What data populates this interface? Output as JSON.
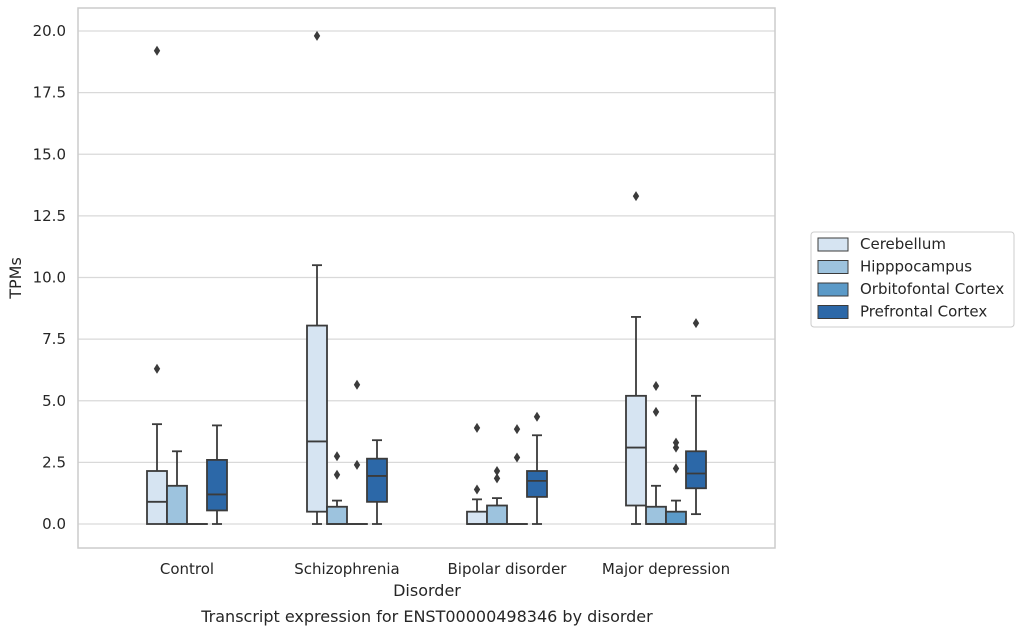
{
  "caption": "Transcript expression for ENST00000498346 by disorder",
  "chart_data": {
    "type": "box",
    "xlabel": "Disorder",
    "ylabel": "TPMs",
    "ylim": [
      -1.0,
      20.9
    ],
    "yticks": [
      "0.0",
      "2.5",
      "5.0",
      "7.5",
      "10.0",
      "12.5",
      "15.0",
      "17.5",
      "20.0"
    ],
    "ytick_values": [
      0,
      2.5,
      5,
      7.5,
      10,
      12.5,
      15,
      17.5,
      20
    ],
    "grid": "horizontal",
    "legend_position": "right",
    "categories": [
      "Control",
      "Schizophrenia",
      "Bipolar disorder",
      "Major depression"
    ],
    "series": [
      {
        "name": "Cerebellum",
        "color": "#d6e4f2",
        "boxes": [
          {
            "min": 0,
            "q1": 0,
            "median": 0.9,
            "q3": 2.15,
            "max": 4.05,
            "outliers": [
              6.3,
              19.2
            ]
          },
          {
            "min": 0,
            "q1": 0.5,
            "median": 3.35,
            "q3": 8.05,
            "max": 10.5,
            "outliers": [
              19.8
            ]
          },
          {
            "min": 0,
            "q1": 0,
            "median": 0,
            "q3": 0.5,
            "max": 1.0,
            "outliers": [
              1.4,
              3.9
            ]
          },
          {
            "min": 0,
            "q1": 0.75,
            "median": 3.1,
            "q3": 5.2,
            "max": 8.4,
            "outliers": [
              13.3
            ]
          }
        ]
      },
      {
        "name": "Hipppocampus",
        "color": "#9dc3de",
        "boxes": [
          {
            "min": 0,
            "q1": 0,
            "median": 0,
            "q3": 1.55,
            "max": 2.95,
            "outliers": []
          },
          {
            "min": 0,
            "q1": 0,
            "median": 0,
            "q3": 0.7,
            "max": 0.95,
            "outliers": [
              2.0,
              2.75
            ]
          },
          {
            "min": 0,
            "q1": 0,
            "median": 0,
            "q3": 0.75,
            "max": 1.05,
            "outliers": [
              1.85,
              2.15
            ]
          },
          {
            "min": 0,
            "q1": 0,
            "median": 0,
            "q3": 0.7,
            "max": 1.55,
            "outliers": [
              4.55,
              5.6
            ]
          }
        ]
      },
      {
        "name": "Orbitofontal Cortex",
        "color": "#5b9ac8",
        "boxes": [
          {
            "min": 0,
            "q1": 0,
            "median": 0,
            "q3": 0,
            "max": 0,
            "outliers": []
          },
          {
            "min": 0,
            "q1": 0,
            "median": 0,
            "q3": 0,
            "max": 0,
            "outliers": [
              2.4,
              5.65
            ]
          },
          {
            "min": 0,
            "q1": 0,
            "median": 0,
            "q3": 0,
            "max": 0,
            "outliers": [
              2.7,
              3.85
            ]
          },
          {
            "min": 0,
            "q1": 0,
            "median": 0,
            "q3": 0.5,
            "max": 0.95,
            "outliers": [
              2.25,
              3.1,
              3.3
            ]
          }
        ]
      },
      {
        "name": "Prefrontal Cortex",
        "color": "#2c68a8",
        "boxes": [
          {
            "min": 0,
            "q1": 0.55,
            "median": 1.2,
            "q3": 2.6,
            "max": 4.0,
            "outliers": []
          },
          {
            "min": 0,
            "q1": 0.9,
            "median": 1.95,
            "q3": 2.65,
            "max": 3.4,
            "outliers": []
          },
          {
            "min": 0,
            "q1": 1.1,
            "median": 1.75,
            "q3": 2.15,
            "max": 3.6,
            "outliers": [
              4.35
            ]
          },
          {
            "min": 0.4,
            "q1": 1.45,
            "median": 2.05,
            "q3": 2.95,
            "max": 5.2,
            "outliers": [
              8.15
            ]
          }
        ]
      }
    ]
  }
}
